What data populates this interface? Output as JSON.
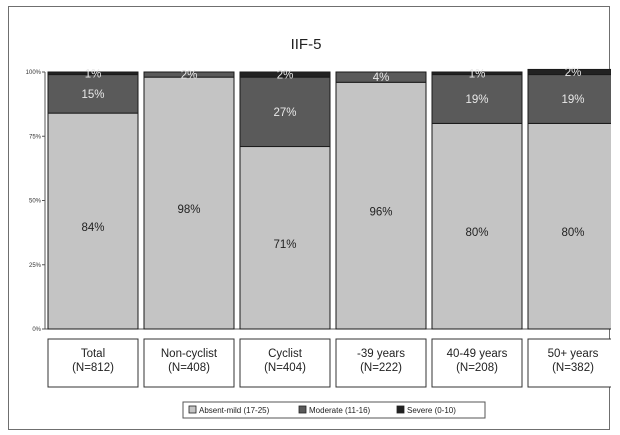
{
  "chart_data": {
    "type": "bar",
    "stacked": true,
    "title": "IIF-5",
    "xlabel": "",
    "ylabel": "",
    "ylim": [
      0,
      100
    ],
    "yticks": [
      "0%",
      "25%",
      "50%",
      "75%",
      "100%"
    ],
    "categories": [
      [
        "Total",
        "(N=812)"
      ],
      [
        "Non-cyclist",
        "(N=408)"
      ],
      [
        "Cyclist",
        "(N=404)"
      ],
      [
        "-39 years",
        "(N=222)"
      ],
      [
        "40-49 years",
        "(N=208)"
      ],
      [
        "50+ years",
        "(N=382)"
      ]
    ],
    "series": [
      {
        "name": "Absent-mild (17-25)",
        "values": [
          84,
          98,
          71,
          96,
          80,
          80
        ],
        "labels": [
          "84%",
          "98%",
          "71%",
          "96%",
          "80%",
          "80%"
        ],
        "color": "#c4c4c4"
      },
      {
        "name": "Moderate (11-16)",
        "values": [
          15,
          2,
          27,
          4,
          19,
          19
        ],
        "labels": [
          "15%",
          "2%",
          "27%",
          "4%",
          "19%",
          "19%"
        ],
        "color": "#5a5a5a"
      },
      {
        "name": "Severe (0-10)",
        "values": [
          1,
          0,
          2,
          0,
          1,
          2
        ],
        "labels": [
          "1%",
          "",
          "2%",
          "",
          "1%",
          "2%"
        ],
        "color": "#222222"
      }
    ],
    "legend_position": "bottom",
    "grid": false
  }
}
